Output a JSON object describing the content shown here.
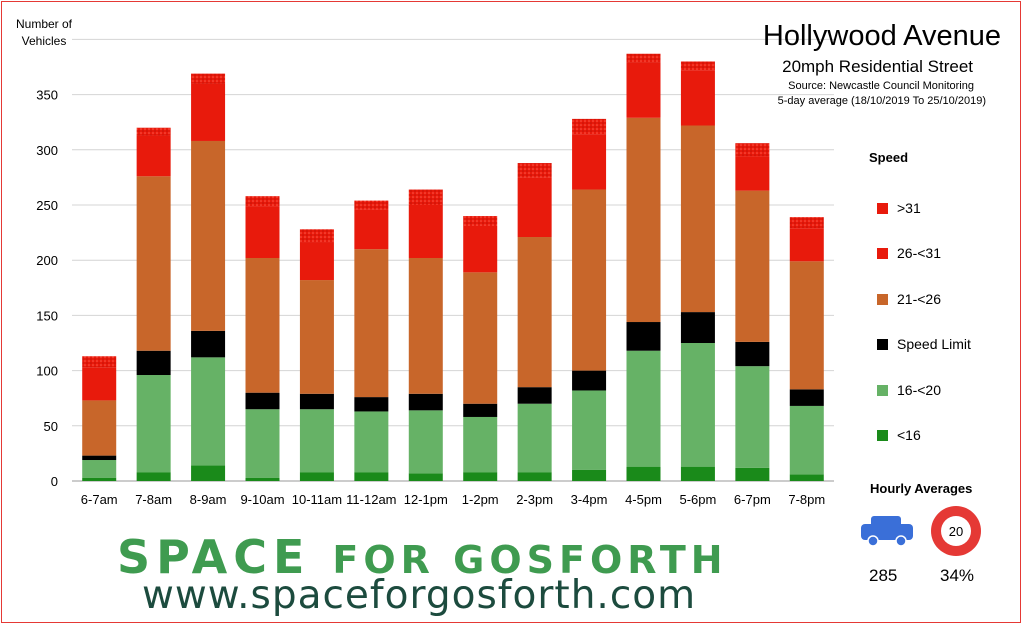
{
  "chart_data": {
    "type": "bar",
    "stacked": true,
    "title": "Hollywood Avenue",
    "subtitle": "20mph Residential Street",
    "source": "Source: Newcastle Council Monitoring",
    "date_range": "5-day average (18/10/2019 To 25/10/2019)",
    "ylabel": "Number of Vehicles",
    "ylim": [
      0,
      400
    ],
    "yticks": [
      0,
      50,
      100,
      150,
      200,
      250,
      300,
      350
    ],
    "grid": true,
    "legend_title": "Speed",
    "legend_position": "right",
    "categories": [
      "6-7am",
      "7-8am",
      "8-9am",
      "9-10am",
      "10-11am",
      "11-12am",
      "12-1pm",
      "1-2pm",
      "2-3pm",
      "3-4pm",
      "4-5pm",
      "5-6pm",
      "6-7pm",
      "7-8pm"
    ],
    "series": [
      {
        "name": "<16",
        "color": "#1a8a1a",
        "values": [
          3,
          8,
          14,
          3,
          8,
          8,
          7,
          8,
          8,
          10,
          13,
          13,
          12,
          6
        ]
      },
      {
        "name": "16-<20",
        "color": "#66b266",
        "values": [
          16,
          88,
          98,
          62,
          57,
          55,
          57,
          50,
          62,
          72,
          105,
          112,
          92,
          62
        ]
      },
      {
        "name": "Speed Limit",
        "color": "#000000",
        "values": [
          4,
          22,
          24,
          15,
          14,
          13,
          15,
          12,
          15,
          18,
          26,
          28,
          22,
          15
        ]
      },
      {
        "name": "21-<26",
        "color": "#c8662a",
        "values": [
          50,
          158,
          172,
          122,
          103,
          134,
          123,
          119,
          136,
          164,
          185,
          169,
          137,
          116
        ]
      },
      {
        "name": "26-<31",
        "color": "#e81a0c",
        "values": [
          30,
          37,
          52,
          47,
          34,
          36,
          48,
          42,
          54,
          50,
          50,
          50,
          31,
          30
        ]
      },
      {
        "name": ">31",
        "color": "#e81a0c",
        "values": [
          10,
          7,
          9,
          9,
          12,
          8,
          14,
          9,
          13,
          14,
          8,
          8,
          12,
          10
        ]
      }
    ]
  },
  "legend": {
    "title": "Speed",
    "items": [
      {
        "label": ">31",
        "color": "#e81a0c"
      },
      {
        "label": "26-<31",
        "color": "#e81a0c"
      },
      {
        "label": "21-<26",
        "color": "#c8662a"
      },
      {
        "label": "Speed Limit",
        "color": "#000000"
      },
      {
        "label": "16-<20",
        "color": "#66b266"
      },
      {
        "label": "<16",
        "color": "#1a8a1a"
      }
    ]
  },
  "hourly": {
    "title": "Hourly Averages",
    "vehicles": "285",
    "percent": "34%",
    "limit_sign": "20",
    "car_icon": "car-icon",
    "sign_icon": "speed-limit-sign-icon"
  },
  "branding": {
    "word1": "SPACE",
    "word2": "FOR GOSFORTH",
    "url": "www.spaceforgosforth.com",
    "color_primary": "#3f9b50",
    "color_url": "#1c4b3e"
  }
}
